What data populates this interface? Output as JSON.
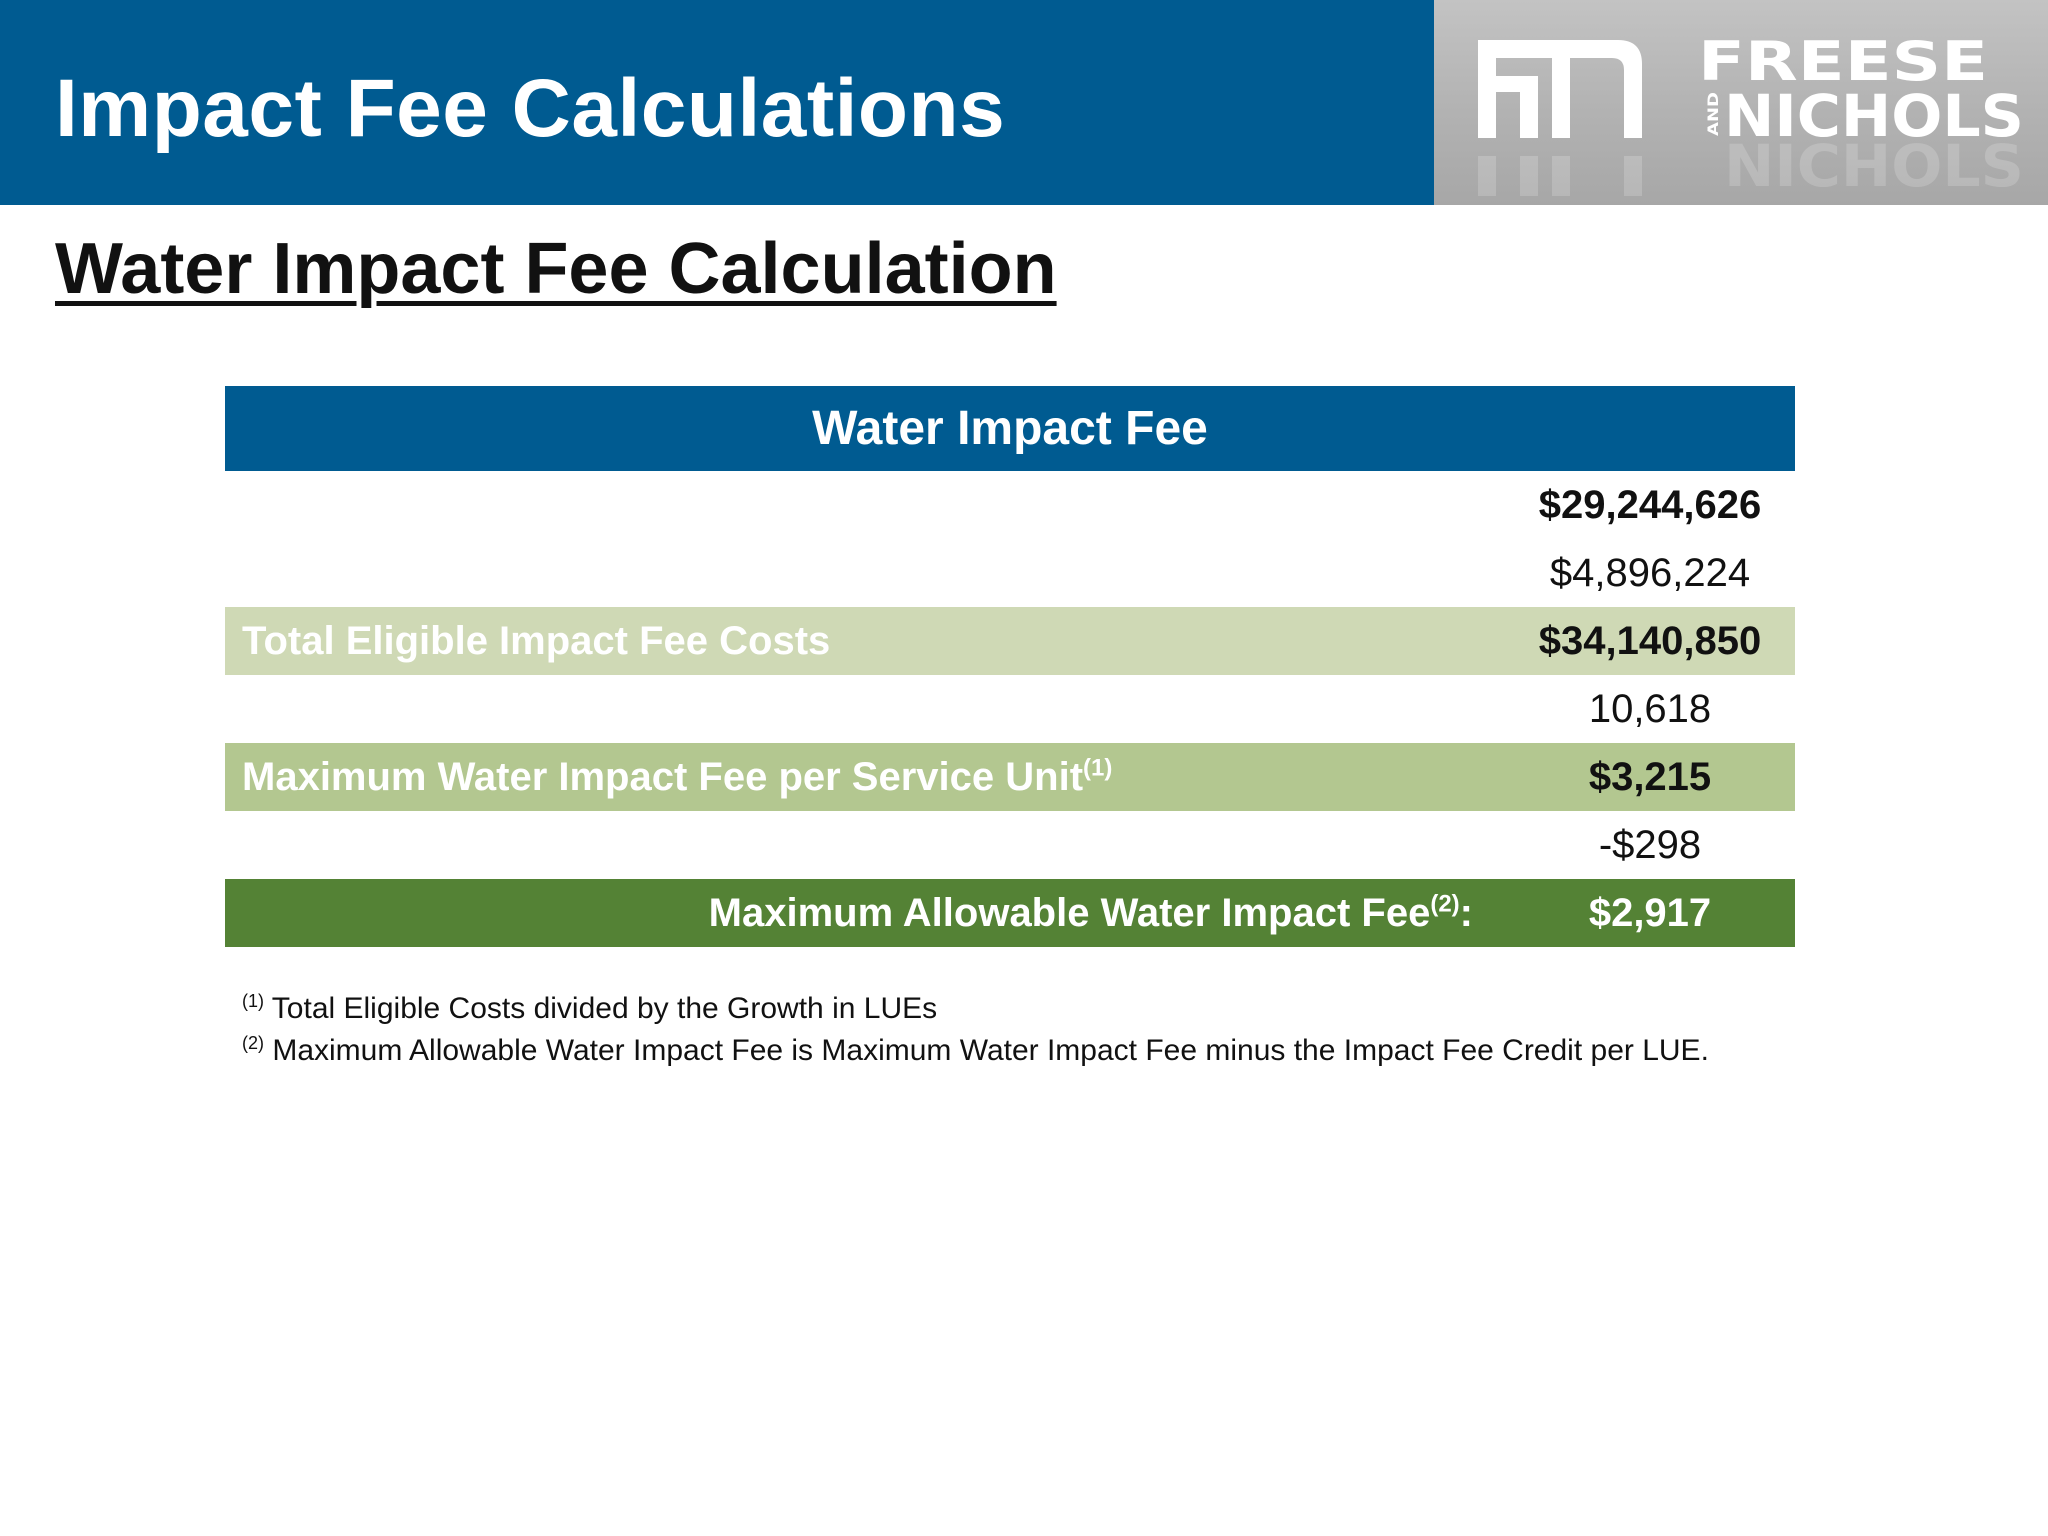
{
  "header": {
    "title": "Impact Fee Calculations"
  },
  "logo": {
    "line1": "FREESE",
    "and": "AND",
    "line2": "NICHOLS"
  },
  "subtitle": "Water Impact Fee Calculation",
  "table": {
    "title": "Water Impact Fee",
    "rows": [
      {
        "label": "",
        "value": "$29,244,626",
        "style": "plain",
        "bold": true
      },
      {
        "label": "",
        "value": "$4,896,224",
        "style": "plain",
        "bold": false
      },
      {
        "label": "Total Eligible Impact Fee Costs",
        "value": "$34,140,850",
        "style": "light",
        "bold": true
      },
      {
        "label": "",
        "value": "10,618",
        "style": "plain",
        "bold": false
      },
      {
        "label": "Maximum Water Impact Fee per Service Unit",
        "label_note": "(1)",
        "value": "$3,215",
        "style": "medium",
        "bold": true
      },
      {
        "label": "",
        "value": "-$298",
        "style": "plain",
        "bold": false
      },
      {
        "label": "Maximum Allowable Water Impact Fee",
        "label_note": "(2)",
        "label_suffix": ":",
        "value": "$2,917",
        "style": "dark",
        "bold": true
      }
    ]
  },
  "footnotes": [
    {
      "mark": "(1)",
      "text": "Total Eligible Costs divided by the Growth in LUEs"
    },
    {
      "mark": "(2)",
      "text": "Maximum Allowable Water Impact Fee is Maximum Water Impact Fee minus the Impact Fee Credit per LUE."
    }
  ],
  "colors": {
    "header_blue": "#005b91",
    "row_light": "#cfd9b5",
    "row_medium": "#b3c790",
    "row_dark": "#548235"
  }
}
